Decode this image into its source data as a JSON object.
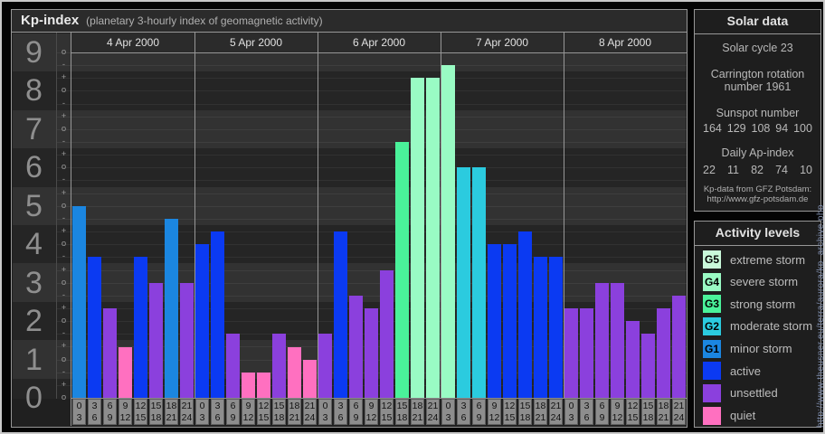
{
  "header": {
    "title": "Kp-index",
    "subtitle": "(planetary 3-hourly index of geomagnetic activity)"
  },
  "chart_data": {
    "type": "bar",
    "title": "Kp-index (planetary 3-hourly index of geomagnetic activity)",
    "ylabel": "Kp",
    "ylim": [
      0,
      9
    ],
    "y_axis": {
      "majors": [
        "9",
        "8",
        "7",
        "6",
        "5",
        "4",
        "3",
        "2",
        "1",
        "0"
      ],
      "subticks": [
        "o",
        "-",
        "+",
        "o",
        "-",
        "+",
        "o",
        "-",
        "+",
        "o",
        "-",
        "+",
        "o",
        "-",
        "+",
        "o",
        "-",
        "+",
        "o",
        "-",
        "+",
        "o",
        "-",
        "+",
        "o",
        "-",
        "+",
        "o"
      ]
    },
    "x_axis": {
      "slots": [
        [
          "0",
          "3"
        ],
        [
          "3",
          "6"
        ],
        [
          "6",
          "9"
        ],
        [
          "9",
          "12"
        ],
        [
          "12",
          "15"
        ],
        [
          "15",
          "18"
        ],
        [
          "18",
          "21"
        ],
        [
          "21",
          "24"
        ]
      ]
    },
    "days": [
      {
        "date": "4 Apr 2000",
        "bars": [
          {
            "kp": "5o",
            "value": 5.0,
            "level": "G1"
          },
          {
            "kp": "4-",
            "value": 3.67,
            "level": "active"
          },
          {
            "kp": "2+",
            "value": 2.33,
            "level": "unsettled"
          },
          {
            "kp": "1+",
            "value": 1.33,
            "level": "quiet"
          },
          {
            "kp": "4-",
            "value": 3.67,
            "level": "active"
          },
          {
            "kp": "3o",
            "value": 3.0,
            "level": "unsettled"
          },
          {
            "kp": "5-",
            "value": 4.67,
            "level": "G1"
          },
          {
            "kp": "3o",
            "value": 3.0,
            "level": "unsettled"
          }
        ]
      },
      {
        "date": "5 Apr 2000",
        "bars": [
          {
            "kp": "4o",
            "value": 4.0,
            "level": "active"
          },
          {
            "kp": "4+",
            "value": 4.33,
            "level": "active"
          },
          {
            "kp": "2-",
            "value": 1.67,
            "level": "unsettled"
          },
          {
            "kp": "1-",
            "value": 0.67,
            "level": "quiet"
          },
          {
            "kp": "1-",
            "value": 0.67,
            "level": "quiet"
          },
          {
            "kp": "2-",
            "value": 1.67,
            "level": "unsettled"
          },
          {
            "kp": "1+",
            "value": 1.33,
            "level": "quiet"
          },
          {
            "kp": "1o",
            "value": 1.0,
            "level": "quiet"
          }
        ]
      },
      {
        "date": "6 Apr 2000",
        "bars": [
          {
            "kp": "2-",
            "value": 1.67,
            "level": "unsettled"
          },
          {
            "kp": "4+",
            "value": 4.33,
            "level": "active"
          },
          {
            "kp": "3-",
            "value": 2.67,
            "level": "unsettled"
          },
          {
            "kp": "2+",
            "value": 2.33,
            "level": "unsettled"
          },
          {
            "kp": "3+",
            "value": 3.33,
            "level": "unsettled"
          },
          {
            "kp": "7-",
            "value": 6.67,
            "level": "G3"
          },
          {
            "kp": "8+",
            "value": 8.33,
            "level": "G4"
          },
          {
            "kp": "8+",
            "value": 8.33,
            "level": "G4"
          }
        ]
      },
      {
        "date": "7 Apr 2000",
        "bars": [
          {
            "kp": "9-",
            "value": 8.67,
            "level": "G4"
          },
          {
            "kp": "6o",
            "value": 6.0,
            "level": "G2"
          },
          {
            "kp": "6o",
            "value": 6.0,
            "level": "G2"
          },
          {
            "kp": "4o",
            "value": 4.0,
            "level": "active"
          },
          {
            "kp": "4o",
            "value": 4.0,
            "level": "active"
          },
          {
            "kp": "4+",
            "value": 4.33,
            "level": "active"
          },
          {
            "kp": "4-",
            "value": 3.67,
            "level": "active"
          },
          {
            "kp": "4-",
            "value": 3.67,
            "level": "active"
          }
        ]
      },
      {
        "date": "8 Apr 2000",
        "bars": [
          {
            "kp": "2+",
            "value": 2.33,
            "level": "unsettled"
          },
          {
            "kp": "2+",
            "value": 2.33,
            "level": "unsettled"
          },
          {
            "kp": "3o",
            "value": 3.0,
            "level": "unsettled"
          },
          {
            "kp": "3o",
            "value": 3.0,
            "level": "unsettled"
          },
          {
            "kp": "2o",
            "value": 2.0,
            "level": "unsettled"
          },
          {
            "kp": "2-",
            "value": 1.67,
            "level": "unsettled"
          },
          {
            "kp": "2+",
            "value": 2.33,
            "level": "unsettled"
          },
          {
            "kp": "3-",
            "value": 2.67,
            "level": "unsettled"
          }
        ]
      }
    ],
    "colors": {
      "G5": "#c9f9da",
      "G4": "#99fbc4",
      "G3": "#4af29a",
      "G2": "#2bcbdf",
      "G1": "#1b86e0",
      "active": "#0b3af2",
      "unsettled": "#8b40dd",
      "quiet": "#ff70c0",
      "band_light": "#323232",
      "band_dark": "#252525",
      "tick_box": "#8d8d8d"
    },
    "legend_position": "right"
  },
  "solar": {
    "title": "Solar data",
    "cycle": "Solar cycle 23",
    "carrington_line1": "Carrington rotation",
    "carrington_line2": "number 1961",
    "sunspot_label": "Sunspot number",
    "sunspot_values": [
      "164",
      "129",
      "108",
      "94",
      "100"
    ],
    "ap_label": "Daily Ap-index",
    "ap_values": [
      "22",
      "11",
      "82",
      "74",
      "10"
    ],
    "credit_line1": "Kp-data from GFZ Potsdam:",
    "credit_line2": "http://www.gfz-potsdam.de"
  },
  "legend": {
    "title": "Activity levels",
    "items": [
      {
        "code": "G5",
        "level": "G5",
        "label": "extreme storm"
      },
      {
        "code": "G4",
        "level": "G4",
        "label": "severe storm"
      },
      {
        "code": "G3",
        "level": "G3",
        "label": "strong storm"
      },
      {
        "code": "G2",
        "level": "G2",
        "label": "moderate storm"
      },
      {
        "code": "G1",
        "level": "G1",
        "label": "minor storm"
      },
      {
        "code": "",
        "level": "active",
        "label": "active"
      },
      {
        "code": "",
        "level": "unsettled",
        "label": "unsettled"
      },
      {
        "code": "",
        "level": "quiet",
        "label": "quiet"
      }
    ]
  },
  "watermark": "http://www.theusner.eu/terra/aurora/kp_archive.php"
}
